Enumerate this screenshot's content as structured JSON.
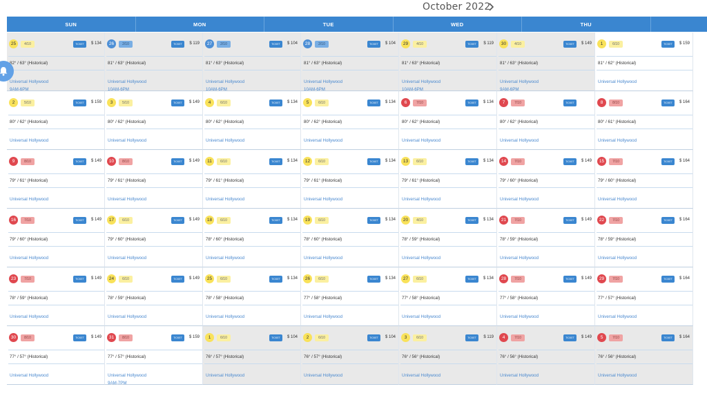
{
  "calendar": {
    "month_title": "October 2022"
  },
  "days_of_week": [
    "SUN",
    "MON",
    "TUE",
    "WED",
    "THU",
    ""
  ],
  "ticket_label": "TICKET",
  "weeks": [
    [
      {
        "day": "25",
        "tone": "yellow",
        "crowd": "4/10",
        "price": "$ 134",
        "weather": "82° / 63° (Historical)",
        "park": "Universal Hollywood",
        "hours": "9AM-6PM",
        "gray": true
      },
      {
        "day": "26",
        "tone": "blue",
        "crowd": "2/10",
        "price": "$ 119",
        "weather": "81° / 63° (Historical)",
        "park": "Universal Hollywood",
        "hours": "10AM-6PM",
        "gray": true
      },
      {
        "day": "27",
        "tone": "blue",
        "crowd": "2/10",
        "price": "$ 104",
        "weather": "81° / 63° (Historical)",
        "park": "Universal Hollywood",
        "hours": "10AM-6PM",
        "gray": true
      },
      {
        "day": "28",
        "tone": "blue",
        "crowd": "2/10",
        "price": "$ 104",
        "weather": "81° / 63° (Historical)",
        "park": "Universal Hollywood",
        "hours": "10AM-6PM",
        "gray": true
      },
      {
        "day": "29",
        "tone": "yellow",
        "crowd": "4/10",
        "price": "$ 119",
        "weather": "81° / 63° (Historical)",
        "park": "Universal Hollywood",
        "hours": "10AM-6PM",
        "gray": true
      },
      {
        "day": "30",
        "tone": "yellow",
        "crowd": "4/10",
        "price": "$ 149",
        "weather": "81° / 63° (Historical)",
        "park": "Universal Hollywood",
        "hours": "9AM-6PM",
        "gray": true
      },
      {
        "day": "1",
        "tone": "yellow",
        "crowd": "6/10",
        "price": "$ 159",
        "weather": "81° / 62° (Historical)",
        "park": "Universal Hollywood",
        "hours": "",
        "gray": false
      }
    ],
    [
      {
        "day": "2",
        "tone": "yellow",
        "crowd": "5/10",
        "price": "$ 159",
        "weather": "80° / 62° (Historical)",
        "park": "Universal Hollywood",
        "hours": "",
        "gray": false
      },
      {
        "day": "3",
        "tone": "yellow",
        "crowd": "5/10",
        "price": "$ 149",
        "weather": "80° / 62° (Historical)",
        "park": "Universal Hollywood",
        "hours": "",
        "gray": false
      },
      {
        "day": "4",
        "tone": "yellow",
        "crowd": "6/10",
        "price": "$ 134",
        "weather": "80° / 62° (Historical)",
        "park": "Universal Hollywood",
        "hours": "",
        "gray": false
      },
      {
        "day": "5",
        "tone": "yellow",
        "crowd": "6/10",
        "price": "$ 134",
        "weather": "80° / 62° (Historical)",
        "park": "Universal Hollywood",
        "hours": "",
        "gray": false
      },
      {
        "day": "6",
        "tone": "red",
        "crowd": "7/10",
        "price": "$ 134",
        "weather": "80° / 62° (Historical)",
        "park": "Universal Hollywood",
        "hours": "",
        "gray": false
      },
      {
        "day": "7",
        "tone": "red",
        "crowd": "7/10",
        "price": "",
        "weather": "80° / 62° (Historical)",
        "park": "Universal Hollywood",
        "hours": "",
        "gray": false
      },
      {
        "day": "8",
        "tone": "red",
        "crowd": "8/10",
        "price": "$ 164",
        "weather": "80° / 61° (Historical)",
        "park": "Universal Hollywood",
        "hours": "",
        "gray": false
      }
    ],
    [
      {
        "day": "9",
        "tone": "red",
        "crowd": "8/10",
        "price": "$ 149",
        "weather": "79° / 61° (Historical)",
        "park": "Universal Hollywood",
        "hours": "",
        "gray": false
      },
      {
        "day": "10",
        "tone": "red",
        "crowd": "8/10",
        "price": "$ 149",
        "weather": "79° / 61° (Historical)",
        "park": "Universal Hollywood",
        "hours": "",
        "gray": false
      },
      {
        "day": "11",
        "tone": "yellow",
        "crowd": "6/10",
        "price": "$ 134",
        "weather": "79° / 61° (Historical)",
        "park": "Universal Hollywood",
        "hours": "",
        "gray": false
      },
      {
        "day": "12",
        "tone": "yellow",
        "crowd": "6/10",
        "price": "$ 134",
        "weather": "79° / 61° (Historical)",
        "park": "Universal Hollywood",
        "hours": "",
        "gray": false
      },
      {
        "day": "13",
        "tone": "yellow",
        "crowd": "6/10",
        "price": "$ 134",
        "weather": "79° / 61° (Historical)",
        "park": "Universal Hollywood",
        "hours": "",
        "gray": false
      },
      {
        "day": "14",
        "tone": "red",
        "crowd": "7/10",
        "price": "$ 149",
        "weather": "79° / 60° (Historical)",
        "park": "Universal Hollywood",
        "hours": "",
        "gray": false
      },
      {
        "day": "15",
        "tone": "red",
        "crowd": "7/10",
        "price": "$ 164",
        "weather": "79° / 60° (Historical)",
        "park": "Universal Hollywood",
        "hours": "",
        "gray": false
      }
    ],
    [
      {
        "day": "16",
        "tone": "red",
        "crowd": "7/10",
        "price": "$ 149",
        "weather": "79° / 60° (Historical)",
        "park": "Universal Hollywood",
        "hours": "",
        "gray": false
      },
      {
        "day": "17",
        "tone": "yellow",
        "crowd": "6/10",
        "price": "$ 149",
        "weather": "79° / 60° (Historical)",
        "park": "Universal Hollywood",
        "hours": "",
        "gray": false
      },
      {
        "day": "18",
        "tone": "yellow",
        "crowd": "6/10",
        "price": "$ 134",
        "weather": "78° / 60° (Historical)",
        "park": "Universal Hollywood",
        "hours": "",
        "gray": false
      },
      {
        "day": "19",
        "tone": "yellow",
        "crowd": "6/10",
        "price": "$ 134",
        "weather": "78° / 60° (Historical)",
        "park": "Universal Hollywood",
        "hours": "",
        "gray": false
      },
      {
        "day": "20",
        "tone": "yellow",
        "crowd": "4/10",
        "price": "$ 134",
        "weather": "78° / 59° (Historical)",
        "park": "Universal Hollywood",
        "hours": "",
        "gray": false
      },
      {
        "day": "21",
        "tone": "red",
        "crowd": "7/10",
        "price": "$ 149",
        "weather": "78° / 59° (Historical)",
        "park": "Universal Hollywood",
        "hours": "",
        "gray": false
      },
      {
        "day": "22",
        "tone": "red",
        "crowd": "7/10",
        "price": "$ 164",
        "weather": "78° / 59° (Historical)",
        "park": "Universal Hollywood",
        "hours": "",
        "gray": false
      }
    ],
    [
      {
        "day": "23",
        "tone": "red",
        "crowd": "7/10",
        "price": "$ 149",
        "weather": "78° / 59° (Historical)",
        "park": "Universal Hollywood",
        "hours": "",
        "gray": false
      },
      {
        "day": "24",
        "tone": "yellow",
        "crowd": "6/10",
        "price": "$ 149",
        "weather": "78° / 59° (Historical)",
        "park": "Universal Hollywood",
        "hours": "",
        "gray": false
      },
      {
        "day": "25",
        "tone": "yellow",
        "crowd": "6/10",
        "price": "$ 134",
        "weather": "78° / 58° (Historical)",
        "park": "Universal Hollywood",
        "hours": "",
        "gray": false
      },
      {
        "day": "26",
        "tone": "yellow",
        "crowd": "6/10",
        "price": "$ 134",
        "weather": "77° / 58° (Historical)",
        "park": "Universal Hollywood",
        "hours": "",
        "gray": false
      },
      {
        "day": "27",
        "tone": "yellow",
        "crowd": "6/10",
        "price": "$ 134",
        "weather": "77° / 58° (Historical)",
        "park": "Universal Hollywood",
        "hours": "",
        "gray": false
      },
      {
        "day": "28",
        "tone": "red",
        "crowd": "7/10",
        "price": "$ 149",
        "weather": "77° / 58° (Historical)",
        "park": "Universal Hollywood",
        "hours": "",
        "gray": false
      },
      {
        "day": "29",
        "tone": "red",
        "crowd": "7/10",
        "price": "$ 164",
        "weather": "77° / 57° (Historical)",
        "park": "Universal Hollywood",
        "hours": "",
        "gray": false
      }
    ],
    [
      {
        "day": "30",
        "tone": "red",
        "crowd": "8/10",
        "price": "$ 149",
        "weather": "77° / 57° (Historical)",
        "park": "Universal Hollywood",
        "hours": "",
        "gray": false
      },
      {
        "day": "31",
        "tone": "red",
        "crowd": "8/10",
        "price": "$ 159",
        "weather": "77° / 57° (Historical)",
        "park": "Universal Hollywood",
        "hours": "9AM-7PM",
        "gray": false
      },
      {
        "day": "1",
        "tone": "yellow",
        "crowd": "6/10",
        "price": "$ 104",
        "weather": "76° / 57° (Historical)",
        "park": "Universal Hollywood",
        "hours": "",
        "gray": true
      },
      {
        "day": "2",
        "tone": "yellow",
        "crowd": "6/10",
        "price": "$ 104",
        "weather": "76° / 57° (Historical)",
        "park": "Universal Hollywood",
        "hours": "",
        "gray": true
      },
      {
        "day": "3",
        "tone": "yellow",
        "crowd": "6/10",
        "price": "$ 119",
        "weather": "76° / 56° (Historical)",
        "park": "Universal Hollywood",
        "hours": "",
        "gray": true
      },
      {
        "day": "4",
        "tone": "red",
        "crowd": "7/10",
        "price": "$ 149",
        "weather": "76° / 56° (Historical)",
        "park": "Universal Hollywood",
        "hours": "",
        "gray": true
      },
      {
        "day": "5",
        "tone": "red",
        "crowd": "7/10",
        "price": "$ 164",
        "weather": "76° / 56° (Historical)",
        "park": "Universal Hollywood",
        "hours": "",
        "gray": true
      }
    ]
  ]
}
